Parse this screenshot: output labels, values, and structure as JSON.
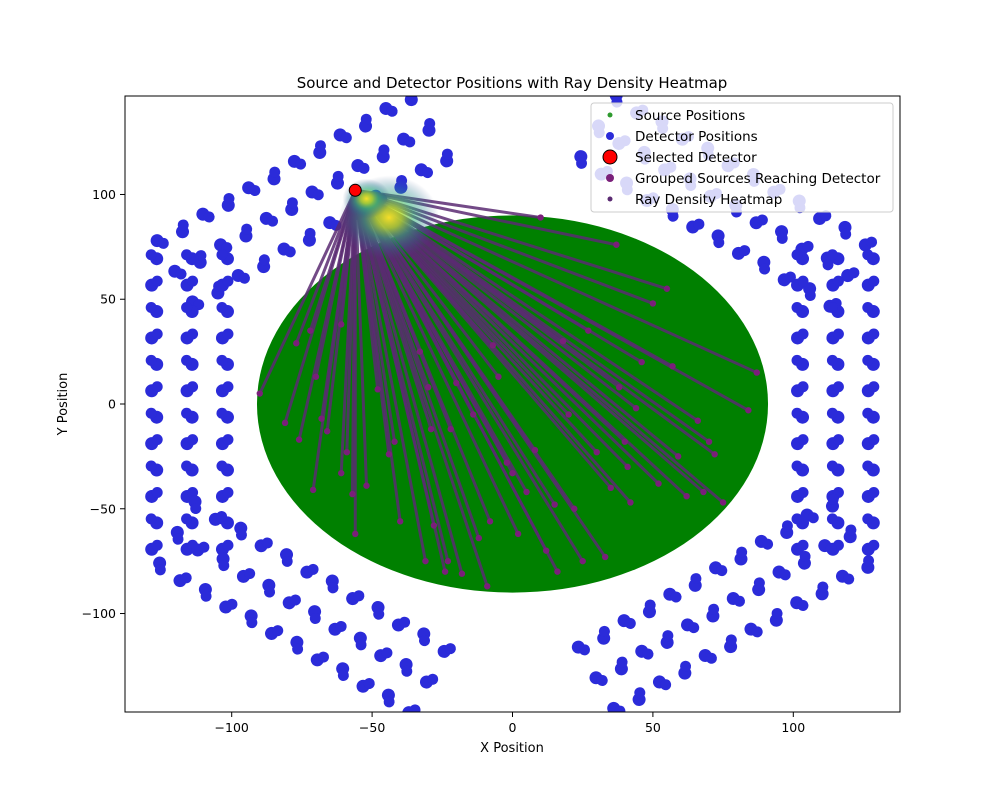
{
  "chart_data": {
    "type": "scatter",
    "title": "Source and Detector Positions with Ray Density Heatmap",
    "xlabel": "X Position",
    "ylabel": "Y Position",
    "xlim": [
      -138,
      138
    ],
    "ylim": [
      -147,
      147
    ],
    "xticks": [
      -100,
      -50,
      0,
      50,
      100
    ],
    "yticks": [
      -100,
      -50,
      0,
      50,
      100
    ],
    "xtick_labels": [
      "−100",
      "−50",
      "0",
      "50",
      "100"
    ],
    "ytick_labels": [
      "−100",
      "−50",
      "0",
      "50",
      "100"
    ],
    "grid": false,
    "legend_position": "top-right",
    "legend": [
      {
        "label": "Source Positions",
        "color": "#2e9a2e",
        "marker": "small-dot"
      },
      {
        "label": "Detector Positions",
        "color": "#2b2bd9",
        "marker": "dot"
      },
      {
        "label": "Selected Detector",
        "color": "#ff0000",
        "marker": "large-dot"
      },
      {
        "label": "Grouped Sources Reaching Detector",
        "color": "#7a1f7a",
        "marker": "dot"
      },
      {
        "label": "Ray Density Heatmap",
        "color": "#5a2a72",
        "marker": "small-dot"
      }
    ],
    "source_region": {
      "center": [
        0,
        0
      ],
      "radius_x": 91,
      "radius_y": 90,
      "color": "#008000"
    },
    "selected_detector": {
      "x": -56,
      "y": 102,
      "color": "#ff0000"
    },
    "detector_banks": [
      {
        "label": "top-left",
        "center": [
          -75,
          97
        ],
        "angle_deg": 30
      },
      {
        "label": "top-right",
        "center": [
          75,
          97
        ],
        "angle_deg": -30
      },
      {
        "label": "left",
        "center": [
          -115,
          0
        ],
        "angle_deg": 90
      },
      {
        "label": "right",
        "center": [
          115,
          0
        ],
        "angle_deg": 90
      },
      {
        "label": "bottom-left",
        "center": [
          -75,
          -97
        ],
        "angle_deg": -30
      },
      {
        "label": "bottom-right",
        "center": [
          75,
          -97
        ],
        "angle_deg": 30
      }
    ],
    "grouped_sources": [
      [
        -90,
        5
      ],
      [
        -81,
        -9
      ],
      [
        -77,
        29
      ],
      [
        -76,
        -17
      ],
      [
        -72,
        35
      ],
      [
        -71,
        -41
      ],
      [
        -70,
        13
      ],
      [
        -68,
        -7
      ],
      [
        -66,
        -13
      ],
      [
        -61,
        38
      ],
      [
        -61,
        -33
      ],
      [
        -59,
        -23
      ],
      [
        -57,
        -43
      ],
      [
        -56,
        -62
      ],
      [
        -52,
        -39
      ],
      [
        -48,
        7
      ],
      [
        -44,
        -24
      ],
      [
        -42,
        -18
      ],
      [
        -40,
        -56
      ],
      [
        -33,
        25
      ],
      [
        -31,
        -75
      ],
      [
        -30,
        8
      ],
      [
        -29,
        -12
      ],
      [
        -28,
        -58
      ],
      [
        -24,
        -80
      ],
      [
        -23,
        -75
      ],
      [
        -22,
        -12
      ],
      [
        -20,
        10
      ],
      [
        -18,
        -81
      ],
      [
        -14,
        -5
      ],
      [
        -12,
        -64
      ],
      [
        -9,
        -87
      ],
      [
        -8,
        -56
      ],
      [
        -7,
        28
      ],
      [
        -5,
        13
      ],
      [
        -2,
        -28
      ],
      [
        0,
        -33
      ],
      [
        2,
        -62
      ],
      [
        5,
        -42
      ],
      [
        8,
        -22
      ],
      [
        10,
        89
      ],
      [
        12,
        -70
      ],
      [
        15,
        -48
      ],
      [
        16,
        -80
      ],
      [
        18,
        30
      ],
      [
        20,
        -5
      ],
      [
        22,
        -50
      ],
      [
        25,
        -75
      ],
      [
        27,
        35
      ],
      [
        30,
        -23
      ],
      [
        33,
        -73
      ],
      [
        35,
        -40
      ],
      [
        37,
        76
      ],
      [
        38,
        8
      ],
      [
        40,
        -18
      ],
      [
        41,
        -30
      ],
      [
        42,
        -47
      ],
      [
        44,
        -2
      ],
      [
        46,
        20
      ],
      [
        50,
        48
      ],
      [
        52,
        -38
      ],
      [
        55,
        55
      ],
      [
        57,
        18
      ],
      [
        59,
        -25
      ],
      [
        62,
        -44
      ],
      [
        66,
        -8
      ],
      [
        68,
        -42
      ],
      [
        70,
        -18
      ],
      [
        72,
        -24
      ],
      [
        75,
        -47
      ],
      [
        84,
        -3
      ],
      [
        87,
        15
      ]
    ]
  }
}
